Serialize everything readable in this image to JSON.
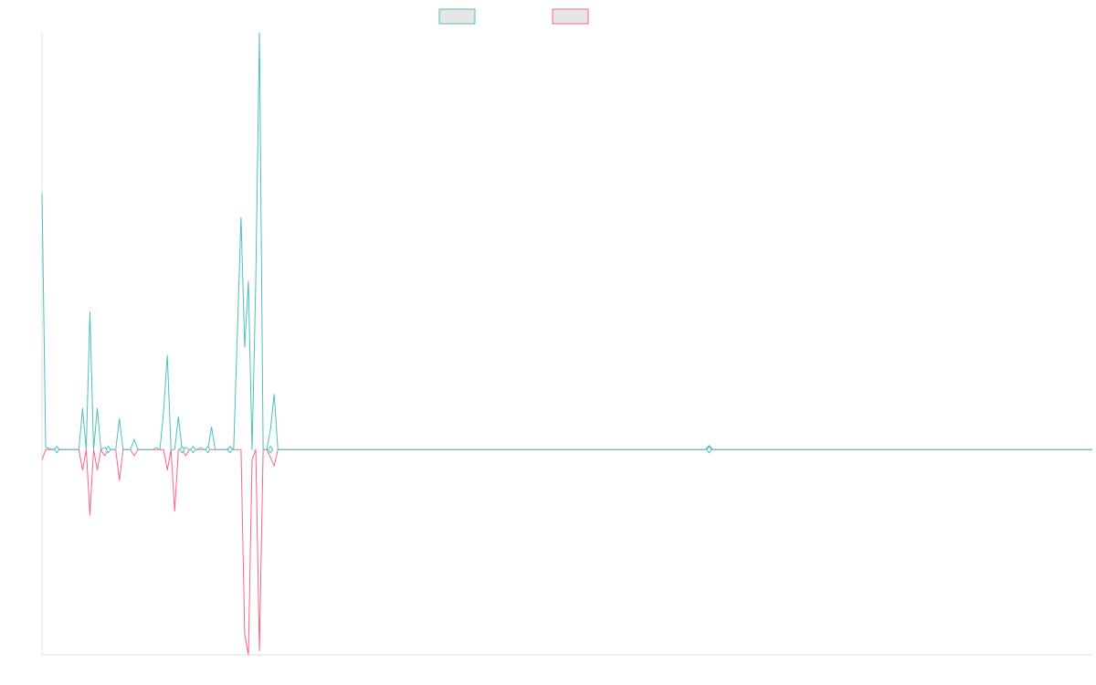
{
  "chart_data": {
    "type": "line",
    "title": "",
    "xlabel": "",
    "ylabel": "",
    "legend_position": "top-center",
    "grid": false,
    "ylim": [
      -1.0,
      2.03
    ],
    "series": [
      {
        "name": "",
        "color": "#4bc0c0",
        "fill": "#e6e6e6",
        "points": [
          [
            0,
            1.25
          ],
          [
            1,
            0.01
          ],
          [
            3,
            0.0
          ],
          [
            4,
            0.01
          ],
          [
            5,
            0.0
          ],
          [
            10,
            0.0
          ],
          [
            11,
            0.2
          ],
          [
            12,
            0.0
          ],
          [
            13,
            0.67
          ],
          [
            14,
            0.0
          ],
          [
            15,
            0.2
          ],
          [
            16,
            0.0
          ],
          [
            17,
            0.01
          ],
          [
            18,
            0.0
          ],
          [
            20,
            0.0
          ],
          [
            21,
            0.15
          ],
          [
            22,
            0.0
          ],
          [
            24,
            0.0
          ],
          [
            25,
            0.05
          ],
          [
            26,
            0.0
          ],
          [
            30,
            0.0
          ],
          [
            31,
            0.01
          ],
          [
            32,
            0.0
          ],
          [
            33,
            0.19
          ],
          [
            34,
            0.46
          ],
          [
            35,
            0.0
          ],
          [
            36,
            0.0
          ],
          [
            37,
            0.16
          ],
          [
            38,
            0.0
          ],
          [
            39,
            0.01
          ],
          [
            40,
            0.0
          ],
          [
            42,
            0.0
          ],
          [
            43,
            0.01
          ],
          [
            44,
            0.0
          ],
          [
            45,
            0.0
          ],
          [
            46,
            0.11
          ],
          [
            47,
            0.0
          ],
          [
            50,
            0.0
          ],
          [
            51,
            0.01
          ],
          [
            52,
            0.0
          ],
          [
            54,
            1.13
          ],
          [
            55,
            0.5
          ],
          [
            56,
            0.82
          ],
          [
            57,
            0.0
          ],
          [
            58,
            0.82
          ],
          [
            59,
            2.03
          ],
          [
            60,
            0.0
          ],
          [
            61,
            0.0
          ],
          [
            62,
            0.1
          ],
          [
            63,
            0.27
          ],
          [
            64,
            0.0
          ],
          [
            65,
            0.0
          ],
          [
            180,
            0.0
          ],
          [
            181,
            0.02
          ],
          [
            182,
            0.0
          ],
          [
            285,
            0.0
          ]
        ]
      },
      {
        "name": "",
        "color": "#ff6384",
        "fill": "#e6e6e6",
        "points": [
          [
            0,
            -0.05
          ],
          [
            1,
            0.0
          ],
          [
            10,
            0.0
          ],
          [
            11,
            -0.1
          ],
          [
            12,
            0.0
          ],
          [
            13,
            -0.32
          ],
          [
            14,
            0.0
          ],
          [
            15,
            -0.1
          ],
          [
            16,
            0.0
          ],
          [
            17,
            -0.03
          ],
          [
            18,
            0.0
          ],
          [
            20,
            0.0
          ],
          [
            21,
            -0.15
          ],
          [
            22,
            0.0
          ],
          [
            24,
            0.0
          ],
          [
            25,
            -0.03
          ],
          [
            26,
            0.0
          ],
          [
            33,
            0.0
          ],
          [
            34,
            -0.1
          ],
          [
            35,
            0.0
          ],
          [
            36,
            -0.3
          ],
          [
            37,
            0.0
          ],
          [
            38,
            0.0
          ],
          [
            39,
            -0.03
          ],
          [
            40,
            0.0
          ],
          [
            54,
            0.0
          ],
          [
            55,
            -0.9
          ],
          [
            56,
            -1.0
          ],
          [
            57,
            -0.05
          ],
          [
            58,
            0.0
          ],
          [
            59,
            -0.98
          ],
          [
            60,
            0.0
          ],
          [
            61,
            0.0
          ],
          [
            62,
            -0.04
          ],
          [
            63,
            -0.08
          ],
          [
            64,
            0.0
          ],
          [
            65,
            0.0
          ],
          [
            285,
            0.0
          ]
        ]
      }
    ],
    "markers": [
      {
        "x": 4,
        "y": 0.0
      },
      {
        "x": 18,
        "y": 0.0
      },
      {
        "x": 38,
        "y": 0.0
      },
      {
        "x": 41,
        "y": 0.0
      },
      {
        "x": 45,
        "y": 0.0
      },
      {
        "x": 51,
        "y": 0.0
      },
      {
        "x": 62,
        "y": 0.0
      },
      {
        "x": 181,
        "y": 0.0
      }
    ]
  }
}
